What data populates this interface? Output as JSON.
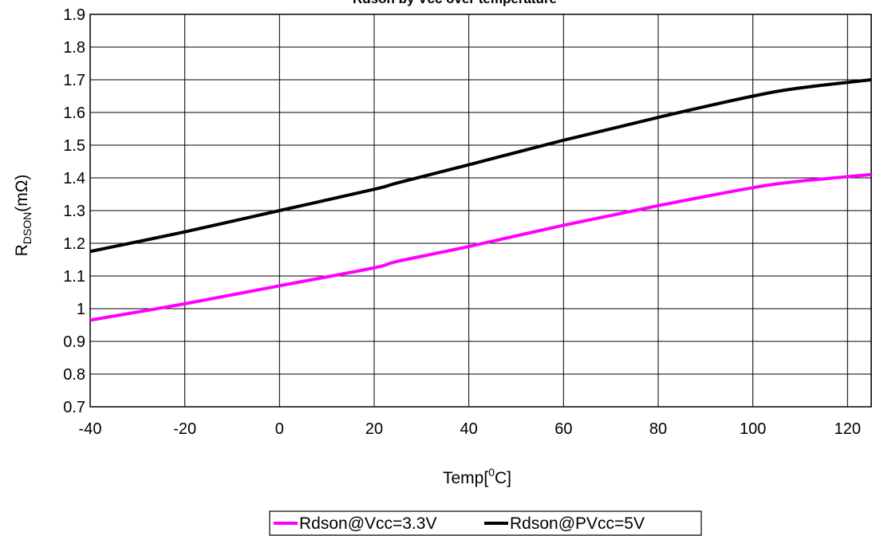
{
  "chart_data": {
    "type": "line",
    "title": "Rdson by Vcc over temperature",
    "xlabel": {
      "main": "Temp[",
      "sup": "0",
      "tail": "C]"
    },
    "ylabel": {
      "main": "R",
      "sub": "DSON",
      "tail": "(mΩ)"
    },
    "xlim": [
      -40,
      125
    ],
    "ylim": [
      0.7,
      1.9
    ],
    "xticks": [
      -40,
      -20,
      0,
      20,
      40,
      60,
      80,
      100,
      120
    ],
    "xtick_labels": [
      "-40",
      "-20",
      "0",
      "20",
      "40",
      "60",
      "80",
      "100",
      "120"
    ],
    "yticks": [
      0.7,
      0.8,
      0.9,
      1.0,
      1.1,
      1.2,
      1.3,
      1.4,
      1.5,
      1.6,
      1.7,
      1.8,
      1.9
    ],
    "ytick_labels": [
      "0.7",
      "0.8",
      "0.9",
      "1",
      "1.1",
      "1.2",
      "1.3",
      "1.4",
      "1.5",
      "1.6",
      "1.7",
      "1.8",
      "1.9"
    ],
    "grid": true,
    "legend_position": "bottom",
    "series": [
      {
        "name": "Rdson@Vcc=3.3V",
        "color": "#ff00ff",
        "x": [
          -40,
          -20,
          0,
          20,
          25,
          40,
          60,
          80,
          100,
          110,
          125
        ],
        "y": [
          0.965,
          1.015,
          1.07,
          1.125,
          1.145,
          1.19,
          1.255,
          1.315,
          1.37,
          1.39,
          1.41
        ]
      },
      {
        "name": "Rdson@PVcc=5V",
        "color": "#000000",
        "x": [
          -40,
          -20,
          0,
          20,
          25,
          40,
          60,
          80,
          100,
          110,
          125
        ],
        "y": [
          1.175,
          1.235,
          1.3,
          1.365,
          1.385,
          1.44,
          1.515,
          1.585,
          1.65,
          1.675,
          1.7
        ]
      }
    ]
  }
}
